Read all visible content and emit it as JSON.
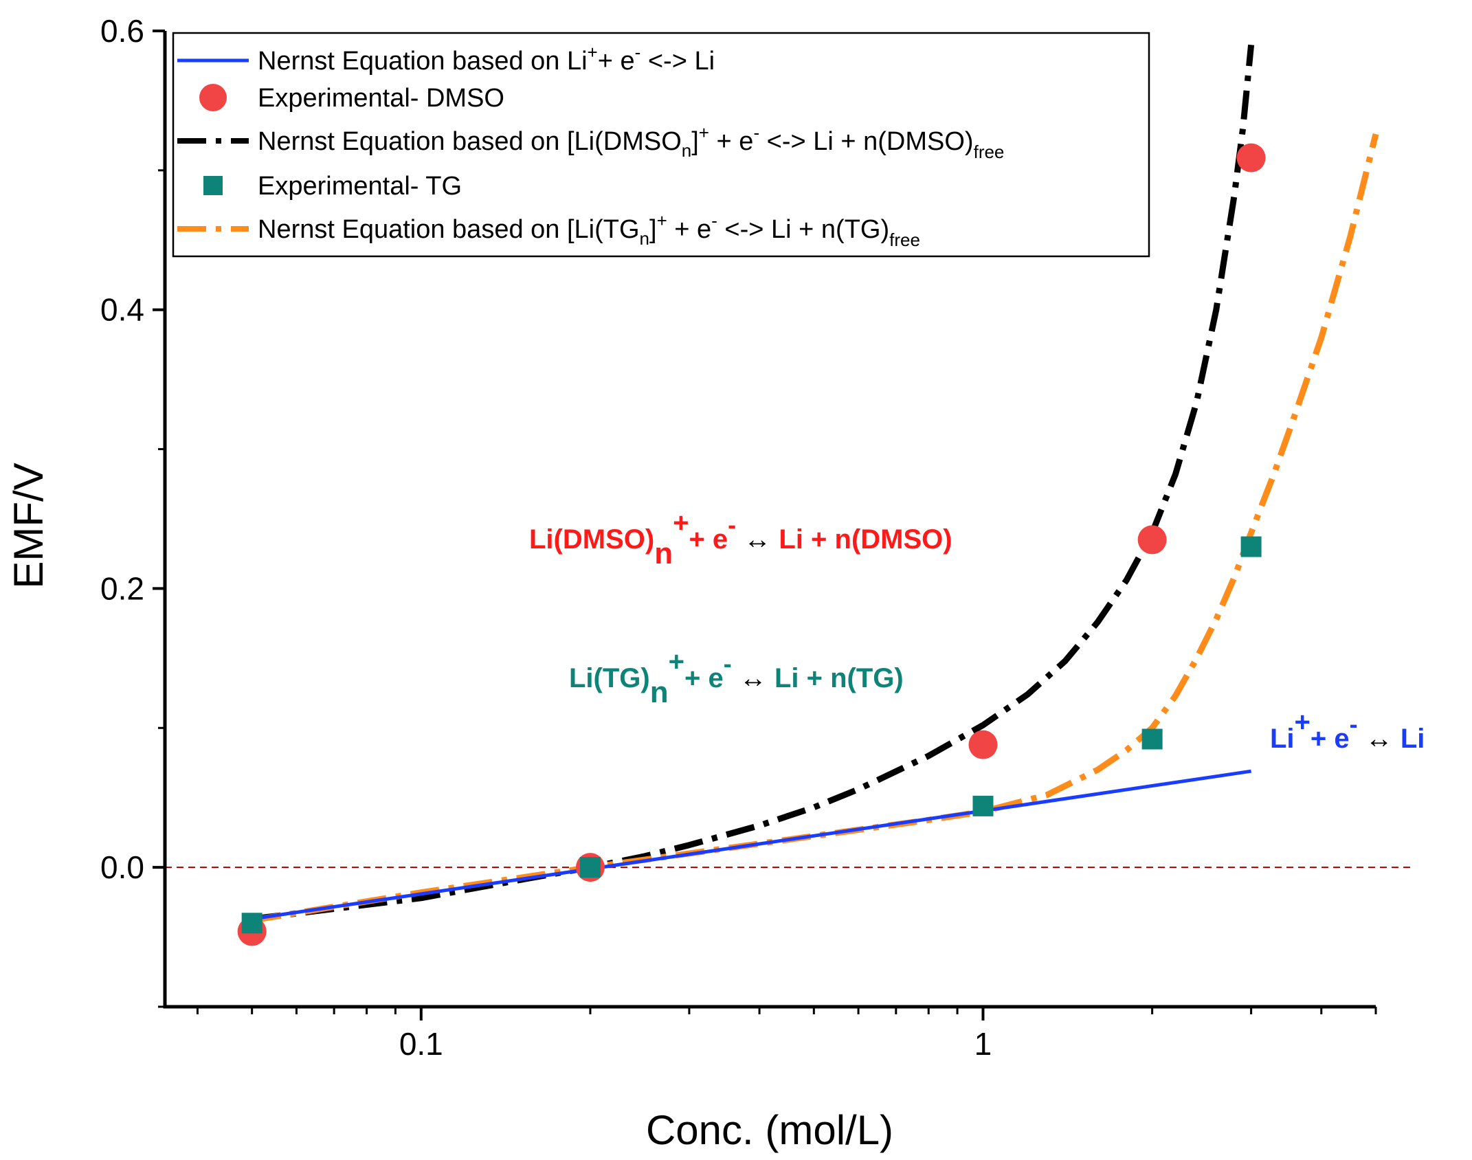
{
  "chart_data": {
    "type": "line",
    "title": "",
    "xlabel": "Conc. (mol/L)",
    "ylabel": "EMF/V",
    "xscale": "log",
    "xlim": [
      0.035,
      5.0
    ],
    "ylim": [
      -0.1,
      0.6
    ],
    "x_ticks": [
      {
        "value": 0.1,
        "label": "0.1"
      },
      {
        "value": 1,
        "label": "1"
      }
    ],
    "y_ticks": [
      {
        "value": 0.0,
        "label": "0.0"
      },
      {
        "value": 0.2,
        "label": "0.2"
      },
      {
        "value": 0.4,
        "label": "0.4"
      },
      {
        "value": 0.6,
        "label": "0.6"
      }
    ],
    "y_minor_ticks": [
      -0.1,
      0.1,
      0.3,
      0.5
    ],
    "reference_line": {
      "y": 0.0,
      "color": "#a40000",
      "style": "dashed"
    },
    "series": [
      {
        "id": "nernst_li",
        "name": "Nernst Equation based on Li⁺+ e⁻ <-> Li",
        "kind": "line",
        "style": "solid",
        "color": "#1a3cff",
        "x": [
          0.05,
          3.0
        ],
        "y": [
          -0.037,
          0.069
        ]
      },
      {
        "id": "exp_dmso",
        "name": "Experimental- DMSO",
        "kind": "marker",
        "marker": "circle",
        "color": "#f14545",
        "x": [
          0.05,
          0.2,
          1.0,
          2.0,
          3.0
        ],
        "y": [
          -0.046,
          0.0,
          0.088,
          0.235,
          0.509
        ]
      },
      {
        "id": "nernst_dmso",
        "name": "Nernst Equation based on [Li(DMSOₙ)]⁺ + e⁻ <-> Li + n(DMSO)free",
        "kind": "line",
        "style": "dashdot",
        "color": "#000000",
        "x": [
          0.05,
          0.1,
          0.15,
          0.2,
          0.25,
          0.3,
          0.4,
          0.5,
          0.6,
          0.8,
          1.0,
          1.2,
          1.4,
          1.6,
          1.8,
          2.0,
          2.2,
          2.4,
          2.6,
          2.8,
          2.9,
          3.0
        ],
        "y": [
          -0.037,
          -0.022,
          -0.009,
          0.0,
          0.008,
          0.016,
          0.03,
          0.043,
          0.056,
          0.08,
          0.102,
          0.124,
          0.148,
          0.176,
          0.206,
          0.24,
          0.282,
          0.334,
          0.4,
          0.482,
          0.53,
          0.59
        ]
      },
      {
        "id": "exp_tg",
        "name": "Experimental- TG",
        "kind": "marker",
        "marker": "square",
        "color": "#0e8478",
        "x": [
          0.05,
          0.2,
          1.0,
          2.0,
          3.0
        ],
        "y": [
          -0.04,
          0.0,
          0.044,
          0.092,
          0.23
        ]
      },
      {
        "id": "nernst_tg",
        "name": "Nernst Equation based on [Li(TGₙ)]⁺ + e⁻ <-> Li + n(TG)free",
        "kind": "line",
        "style": "dashdot",
        "color": "#ff8c1a",
        "x": [
          0.05,
          0.1,
          0.2,
          0.4,
          0.6,
          0.8,
          1.0,
          1.3,
          1.6,
          1.8,
          2.0,
          2.2,
          2.4,
          2.6,
          2.8,
          3.0,
          3.3,
          3.6,
          4.0,
          4.5,
          5.0
        ],
        "y": [
          -0.038,
          -0.018,
          0.0,
          0.017,
          0.027,
          0.034,
          0.04,
          0.052,
          0.07,
          0.084,
          0.1,
          0.123,
          0.15,
          0.178,
          0.208,
          0.24,
          0.283,
          0.326,
          0.38,
          0.452,
          0.526
        ]
      }
    ],
    "legend": {
      "position": "top-left",
      "entries": [
        {
          "series": "nernst_li",
          "text": "Nernst Equation based on Li",
          "sup": "+",
          "after": "+ e",
          "sup2": "-",
          "tail": " <-> Li"
        },
        {
          "series": "exp_dmso",
          "text": "Experimental- DMSO"
        },
        {
          "series": "nernst_dmso",
          "text": "Nernst Equation based on [Li(DMSO",
          "sub": "n",
          "after": "]",
          "sup": "+",
          "tail": " + e",
          "sup2": "-",
          "tail2": " <-> Li + n(DMSO)",
          "sub2": "free"
        },
        {
          "series": "exp_tg",
          "text": "Experimental- TG"
        },
        {
          "series": "nernst_tg",
          "text": "Nernst Equation based on [Li(TG",
          "sub": "n",
          "after": "]",
          "sup": "+",
          "tail": " + e",
          "sup2": "-",
          "tail2": " <-> Li + n(TG)",
          "sub2": "free"
        }
      ]
    },
    "annotations": [
      {
        "id": "anno_dmso",
        "color": "#ff1a1a",
        "anchor_x": 0.035,
        "anchor_y": 0.235,
        "parts": {
          "a": "Li(DMSO)",
          "sub": "n",
          "sup": "+",
          "b": "+ e",
          "sup2": "-",
          "arrow": " ↔ ",
          "c": "Li + n(DMSO)"
        }
      },
      {
        "id": "anno_tg",
        "color": "#0e8478",
        "anchor_x": 0.035,
        "anchor_y": 0.13,
        "parts": {
          "a": "Li(TG)",
          "sub": "n",
          "sup": "+",
          "b": "+ e",
          "sup2": "-",
          "arrow": " ↔ ",
          "c": "Li + n(TG)"
        }
      },
      {
        "id": "anno_li",
        "color": "#1a3cff",
        "anchor_x": 0.035,
        "anchor_y": 0.08,
        "parts": {
          "a": "Li",
          "sup": "+",
          "b": "+ e",
          "sup2": "-",
          "arrow": " ↔ ",
          "c": "Li"
        }
      }
    ]
  }
}
